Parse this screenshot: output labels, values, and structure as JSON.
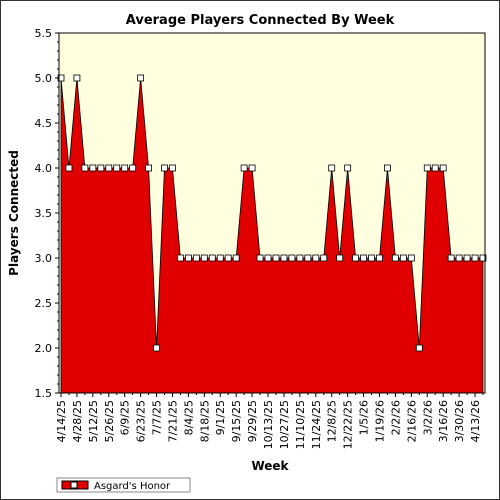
{
  "chart_data": {
    "type": "area",
    "title": "Average Players Connected By Week",
    "xlabel": "Week",
    "ylabel": "Players Connected",
    "ylim": [
      1.5,
      5.5
    ],
    "y_ticks": [
      "1.5",
      "2.0",
      "2.5",
      "3.0",
      "3.5",
      "4.0",
      "4.5",
      "5.0",
      "5.5"
    ],
    "x_tick_labels": [
      "4/14/25",
      "4/28/25",
      "5/12/25",
      "5/26/25",
      "6/9/25",
      "6/23/25",
      "7/7/25",
      "7/21/25",
      "8/4/25",
      "8/18/25",
      "9/1/25",
      "9/15/25",
      "9/29/25",
      "10/13/25",
      "10/27/25",
      "11/10/25",
      "11/24/25",
      "12/8/25",
      "12/22/25",
      "1/5/26",
      "1/19/26",
      "2/2/26",
      "2/16/26",
      "3/2/26",
      "3/16/26",
      "3/30/26",
      "4/13/26"
    ],
    "grid": false,
    "legend_position": "bottom-left",
    "colors": {
      "series": "#e00000",
      "plot_background": "#ffffe0",
      "marker_fill": "#ffffff"
    },
    "series": [
      {
        "name": "Asgard's Honor",
        "values": [
          5,
          4,
          5,
          4,
          4,
          4,
          4,
          4,
          4,
          4,
          5,
          4,
          2,
          4,
          4,
          3,
          3,
          3,
          3,
          3,
          3,
          3,
          3,
          4,
          4,
          3,
          3,
          3,
          3,
          3,
          3,
          3,
          3,
          3,
          4,
          3,
          4,
          3,
          3,
          3,
          3,
          4,
          3,
          3,
          3,
          2,
          4,
          4,
          4,
          3,
          3,
          3,
          3,
          3
        ]
      }
    ]
  }
}
